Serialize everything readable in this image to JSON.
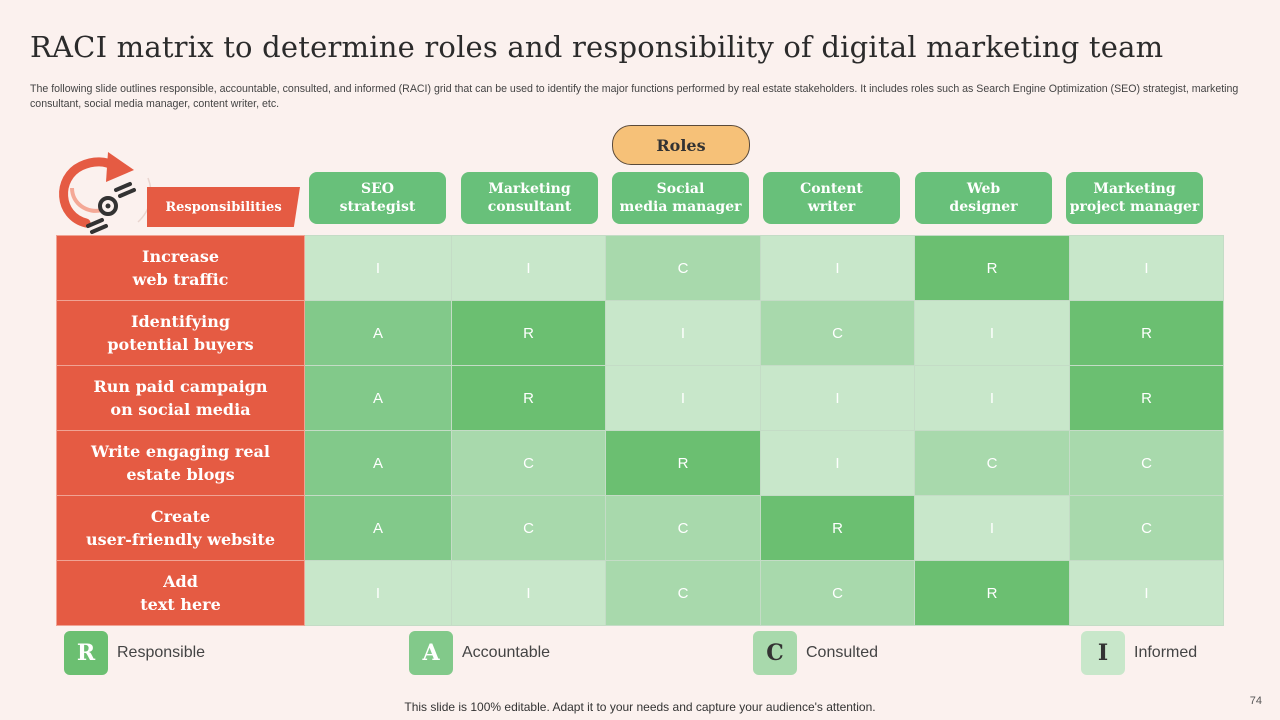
{
  "title": "RACI matrix to determine roles and responsibility of digital marketing team",
  "subtitle": "The following slide outlines responsible, accountable, consulted, and informed (RACI) grid that can be used to identify the major functions performed by real estate stakeholders. It includes roles such as Search Engine Optimization (SEO) strategist, marketing consultant, social media manager, content writer, etc.",
  "roles_label": "Roles",
  "responsibilities_label": "Responsibilities",
  "roles": [
    "SEO\nstrategist",
    "Marketing\nconsultant",
    "Social\nmedia manager",
    "Content\nwriter",
    "Web\ndesigner",
    "Marketing\nproject manager"
  ],
  "rows": [
    {
      "label": "Increase\nweb traffic",
      "values": [
        "I",
        "I",
        "C",
        "I",
        "R",
        "I"
      ]
    },
    {
      "label": "Identifying\npotential buyers",
      "values": [
        "A",
        "R",
        "I",
        "C",
        "I",
        "R"
      ]
    },
    {
      "label": "Run paid campaign\non social media",
      "values": [
        "A",
        "R",
        "I",
        "I",
        "I",
        "R"
      ]
    },
    {
      "label": "Write engaging real\nestate blogs",
      "values": [
        "A",
        "C",
        "R",
        "I",
        "C",
        "C"
      ]
    },
    {
      "label": "Create\nuser-friendly website",
      "values": [
        "A",
        "C",
        "C",
        "R",
        "I",
        "C"
      ]
    },
    {
      "label": "Add\ntext here",
      "values": [
        "I",
        "I",
        "C",
        "C",
        "R",
        "I"
      ]
    }
  ],
  "colors": {
    "R": "#6bbf71",
    "A": "#82c98a",
    "C": "#a8d9ac",
    "I": "#c8e7ca"
  },
  "legend": [
    {
      "letter": "R",
      "label": "Responsible"
    },
    {
      "letter": "A",
      "label": "Accountable"
    },
    {
      "letter": "C",
      "label": "Consulted"
    },
    {
      "letter": "I",
      "label": "Informed"
    }
  ],
  "footer": "This slide is 100% editable. Adapt it to your needs and capture your audience's attention.",
  "page_number": "74"
}
